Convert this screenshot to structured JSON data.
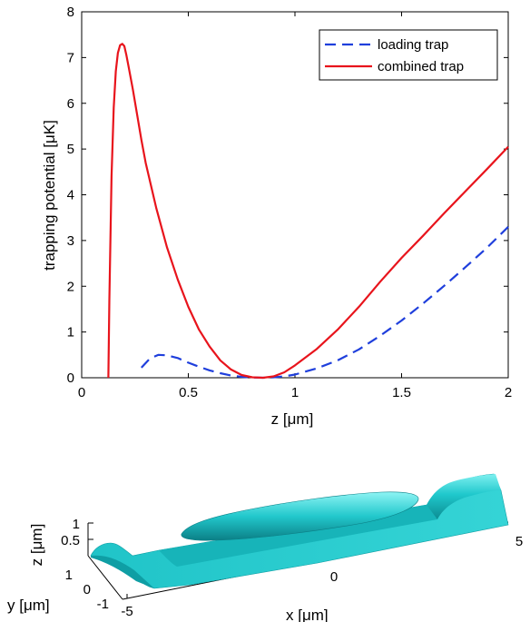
{
  "chart_data": [
    {
      "type": "line",
      "title": "",
      "xlabel": "z [μm]",
      "ylabel": "trapping potential [μK]",
      "xlim": [
        0,
        2
      ],
      "ylim": [
        0,
        8
      ],
      "x_ticks": [
        "0",
        "0.5",
        "1",
        "1.5",
        "2"
      ],
      "y_ticks": [
        "0",
        "1",
        "2",
        "3",
        "4",
        "5",
        "6",
        "7",
        "8"
      ],
      "grid": false,
      "legend_position": "top-right",
      "series": [
        {
          "name": "loading trap",
          "color": "#1f3fdc",
          "style": "dashed",
          "x": [
            0.28,
            0.32,
            0.36,
            0.4,
            0.45,
            0.5,
            0.55,
            0.6,
            0.65,
            0.7,
            0.75,
            0.8,
            0.85,
            0.9,
            0.95,
            1.0,
            1.1,
            1.2,
            1.3,
            1.4,
            1.5,
            1.6,
            1.7,
            1.8,
            1.9,
            2.0
          ],
          "y": [
            0.22,
            0.42,
            0.5,
            0.49,
            0.43,
            0.33,
            0.24,
            0.16,
            0.1,
            0.05,
            0.02,
            0.005,
            0.0,
            0.01,
            0.03,
            0.07,
            0.2,
            0.38,
            0.62,
            0.92,
            1.25,
            1.62,
            2.01,
            2.42,
            2.84,
            3.3
          ]
        },
        {
          "name": "combined trap",
          "color": "#e8141c",
          "style": "solid",
          "x": [
            0.125,
            0.13,
            0.14,
            0.15,
            0.16,
            0.17,
            0.18,
            0.19,
            0.2,
            0.21,
            0.22,
            0.24,
            0.26,
            0.28,
            0.3,
            0.35,
            0.4,
            0.45,
            0.5,
            0.55,
            0.6,
            0.65,
            0.7,
            0.75,
            0.8,
            0.85,
            0.9,
            0.95,
            1.0,
            1.1,
            1.2,
            1.3,
            1.4,
            1.5,
            1.6,
            1.7,
            1.8,
            1.9,
            2.0
          ],
          "y": [
            0.0,
            1.7,
            4.4,
            5.9,
            6.7,
            7.1,
            7.27,
            7.3,
            7.25,
            7.05,
            6.8,
            6.3,
            5.75,
            5.2,
            4.7,
            3.7,
            2.85,
            2.15,
            1.55,
            1.05,
            0.68,
            0.38,
            0.18,
            0.06,
            0.01,
            0.0,
            0.03,
            0.12,
            0.27,
            0.62,
            1.05,
            1.55,
            2.1,
            2.62,
            3.1,
            3.6,
            4.08,
            4.56,
            5.05
          ]
        }
      ]
    },
    {
      "type": "surface3d",
      "title": "",
      "xlabel": "x [μm]",
      "ylabel": "y [μm]",
      "zlabel": "z [μm]",
      "x_ticks": [
        "-5",
        "0",
        "5"
      ],
      "y_ticks": [
        "1",
        "0",
        "-1"
      ],
      "z_ticks": [
        "1",
        "0.5"
      ],
      "color": "#22c8c8"
    }
  ]
}
